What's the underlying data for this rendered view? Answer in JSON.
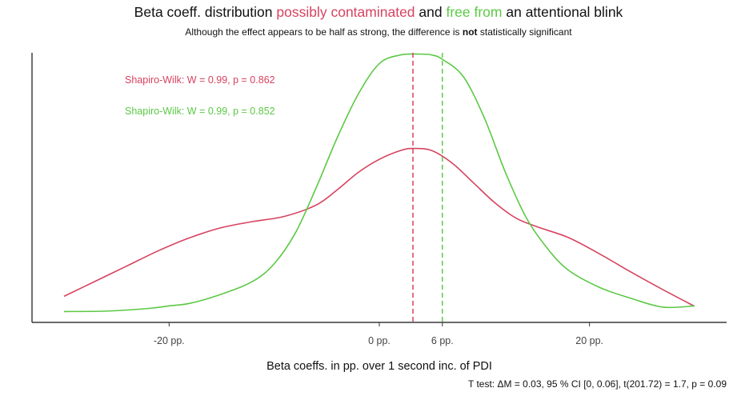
{
  "title": {
    "part1": "Beta coeff. distribution ",
    "part2": "possibly contaminated",
    "part3": " and ",
    "part4": "free from",
    "part5": " an attentional blink"
  },
  "subtitle": {
    "before": "Although the effect appears to be half as strong, the difference is ",
    "bold": "not",
    "after": " statistically significant"
  },
  "caption": "T test: ΔM = 0.03, 95 %  CI [0, 0.06], t(201.72) = 1.7, p = 0.09",
  "colors": {
    "contaminated": "#d6435f",
    "free": "#5cc945"
  },
  "chart_data": {
    "type": "area",
    "title": "Beta coeff. distribution possibly contaminated and free from an attentional blink",
    "subtitle": "Although the effect appears to be half as strong, the difference is not statistically significant",
    "xlabel": "Beta coeffs. in pp. over 1 second inc. of PDI",
    "ylabel": "",
    "xlim": [
      -30,
      30
    ],
    "ylim": [
      0,
      0.062
    ],
    "x_ticks": [
      {
        "value": -20,
        "label": "-20 pp."
      },
      {
        "value": 0,
        "label": "0 pp."
      },
      {
        "value": 6,
        "label": "6 pp."
      },
      {
        "value": 20,
        "label": "20 pp."
      }
    ],
    "grid": false,
    "series": [
      {
        "name": "possibly contaminated",
        "color": "#d6435f",
        "mean": 3.2,
        "annotation": "Shapiro-Wilk: W = 0.99, p = 0.862",
        "x": [
          -30,
          -27,
          -24,
          -21,
          -18,
          -15,
          -12,
          -9,
          -6,
          -4,
          -2,
          0,
          2,
          3.2,
          5,
          7,
          9,
          11,
          13,
          15,
          18,
          21,
          24,
          27,
          30
        ],
        "y": [
          0.006,
          0.0095,
          0.013,
          0.0165,
          0.0195,
          0.0218,
          0.0232,
          0.0244,
          0.027,
          0.0305,
          0.0345,
          0.0375,
          0.0395,
          0.04,
          0.0395,
          0.0365,
          0.032,
          0.0275,
          0.024,
          0.022,
          0.0195,
          0.0157,
          0.0115,
          0.0075,
          0.0037
        ]
      },
      {
        "name": "free from",
        "color": "#5cc945",
        "mean": 6.0,
        "annotation": "Shapiro-Wilk: W = 0.99, p = 0.852",
        "x": [
          -30,
          -26,
          -22,
          -20,
          -18,
          -15,
          -12,
          -10,
          -8,
          -6,
          -4,
          -2,
          0,
          2,
          4,
          5,
          6,
          8,
          10,
          12,
          14,
          16,
          18,
          21,
          24,
          27,
          30
        ],
        "y": [
          0.0025,
          0.0026,
          0.0032,
          0.0038,
          0.0044,
          0.0065,
          0.0095,
          0.0135,
          0.0205,
          0.031,
          0.0425,
          0.0525,
          0.0595,
          0.0615,
          0.0617,
          0.0615,
          0.0605,
          0.0565,
          0.047,
          0.0345,
          0.024,
          0.017,
          0.012,
          0.008,
          0.0055,
          0.0035,
          0.0038
        ]
      }
    ]
  }
}
